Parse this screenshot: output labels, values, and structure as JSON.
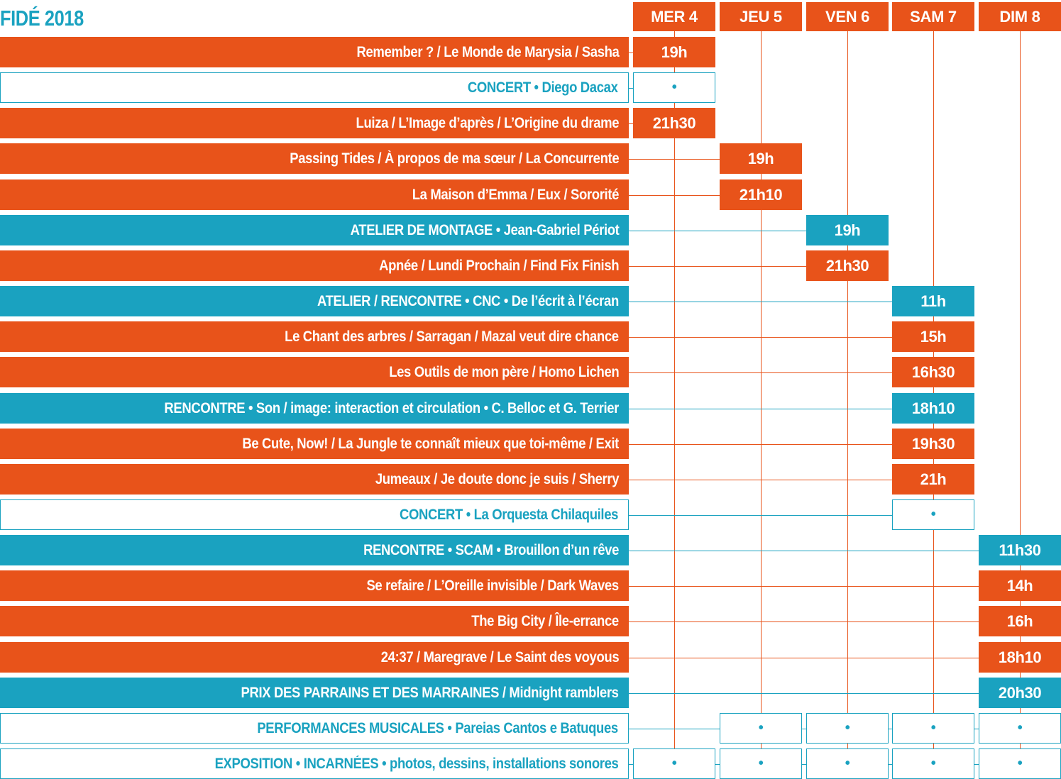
{
  "title": "FIDÉ 2018",
  "colors": {
    "orange": "#e8531a",
    "teal": "#1aa2c0",
    "white": "#ffffff"
  },
  "days": [
    "MER 4",
    "JEU 5",
    "VEN 6",
    "SAM 7",
    "DIM 8"
  ],
  "events": [
    {
      "label": "Remember ? / Le Monde de Marysia / Sasha",
      "kind": "film",
      "times": [
        "19h",
        null,
        null,
        null,
        null
      ]
    },
    {
      "label": "CONCERT • Diego Dacax",
      "kind": "outline",
      "times": [
        "•",
        null,
        null,
        null,
        null
      ]
    },
    {
      "label": "Luiza / L’Image d’après / L’Origine du drame",
      "kind": "film",
      "times": [
        "21h30",
        null,
        null,
        null,
        null
      ]
    },
    {
      "label": "Passing Tides / À propos de ma sœur / La Concurrente",
      "kind": "film",
      "times": [
        null,
        "19h",
        null,
        null,
        null
      ]
    },
    {
      "label": "La Maison d’Emma / Eux / Sororité",
      "kind": "film",
      "times": [
        null,
        "21h10",
        null,
        null,
        null
      ]
    },
    {
      "label": "ATELIER DE MONTAGE • Jean-Gabriel Périot",
      "kind": "talk",
      "times": [
        null,
        null,
        "19h",
        null,
        null
      ]
    },
    {
      "label": "Apnée / Lundi Prochain / Find Fix Finish",
      "kind": "film",
      "times": [
        null,
        null,
        "21h30",
        null,
        null
      ]
    },
    {
      "label": "ATELIER / RENCONTRE • CNC • De l’écrit à l’écran",
      "kind": "talk",
      "times": [
        null,
        null,
        null,
        "11h",
        null
      ]
    },
    {
      "label": "Le Chant des arbres / Sarragan / Mazal veut dire chance",
      "kind": "film",
      "times": [
        null,
        null,
        null,
        "15h",
        null
      ]
    },
    {
      "label": "Les Outils de mon père / Homo Lichen",
      "kind": "film",
      "times": [
        null,
        null,
        null,
        "16h30",
        null
      ]
    },
    {
      "label": "RENCONTRE • Son / image: interaction et circulation • C. Belloc et G. Terrier",
      "kind": "talk",
      "times": [
        null,
        null,
        null,
        "18h10",
        null
      ]
    },
    {
      "label": "Be Cute, Now! / La Jungle te connaît mieux que toi-même / Exit",
      "kind": "film",
      "times": [
        null,
        null,
        null,
        "19h30",
        null
      ]
    },
    {
      "label": "Jumeaux / Je doute donc je suis / Sherry",
      "kind": "film",
      "times": [
        null,
        null,
        null,
        "21h",
        null
      ]
    },
    {
      "label": "CONCERT • La Orquesta Chilaquiles",
      "kind": "outline",
      "times": [
        null,
        null,
        null,
        "•",
        null
      ]
    },
    {
      "label": "RENCONTRE • SCAM • Brouillon d’un rêve",
      "kind": "talk",
      "times": [
        null,
        null,
        null,
        null,
        "11h30"
      ]
    },
    {
      "label": "Se refaire / L’Oreille invisible / Dark Waves",
      "kind": "film",
      "times": [
        null,
        null,
        null,
        null,
        "14h"
      ]
    },
    {
      "label": "The Big City / Île-errance",
      "kind": "film",
      "times": [
        null,
        null,
        null,
        null,
        "16h"
      ]
    },
    {
      "label": "24:37 / Maregrave / Le Saint des voyous",
      "kind": "film",
      "times": [
        null,
        null,
        null,
        null,
        "18h10"
      ]
    },
    {
      "label": "PRIX DES PARRAINS ET DES MARRAINES / Midnight ramblers",
      "kind": "talk",
      "times": [
        null,
        null,
        null,
        null,
        "20h30"
      ]
    },
    {
      "label": "PERFORMANCES MUSICALES • Pareias Cantos e Batuques",
      "kind": "outline",
      "times": [
        null,
        "•",
        "•",
        "•",
        "•"
      ]
    },
    {
      "label": "EXPOSITION • INCARNÉES • photos, dessins, installations sonores",
      "kind": "outline",
      "times": [
        "•",
        "•",
        "•",
        "•",
        "•"
      ]
    }
  ]
}
